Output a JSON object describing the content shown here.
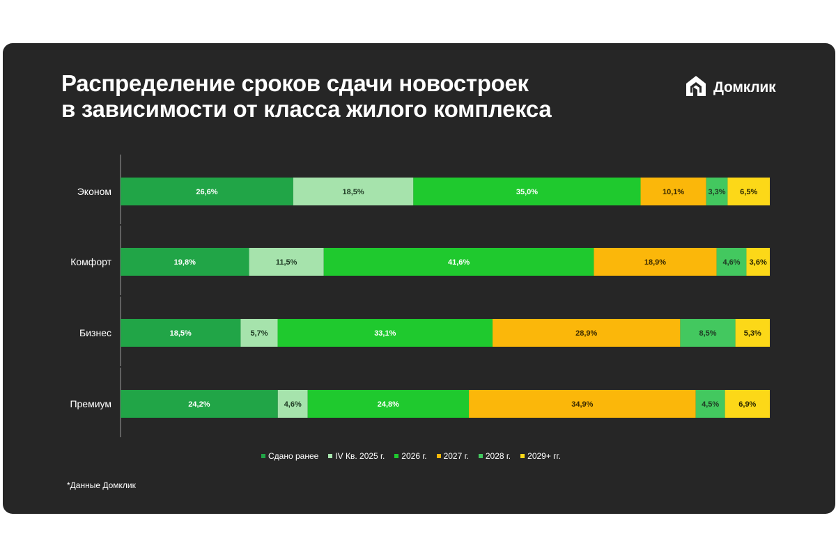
{
  "title_line1": "Распределение сроков сдачи новостроек",
  "title_line2": "в зависимости от класса жилого комплекса",
  "logo": {
    "text": "Домклик",
    "icon": "domclick-house-icon"
  },
  "footnote": "*Данные Домклик",
  "chart_data": {
    "type": "bar",
    "orientation": "horizontal",
    "stacked": true,
    "normalized_percent": true,
    "categories": [
      "Эконом",
      "Комфорт",
      "Бизнес",
      "Премиум"
    ],
    "series": [
      {
        "name": "Сдано ранее",
        "color": "#21a547",
        "values": [
          26.6,
          19.8,
          18.5,
          24.2
        ],
        "labels": [
          "26,6%",
          "19,8%",
          "18,5%",
          "24,2%"
        ]
      },
      {
        "name": "IV Кв. 2025 г.",
        "color": "#a6e3ac",
        "values": [
          18.5,
          11.5,
          5.7,
          4.6
        ],
        "labels": [
          "18,5%",
          "11,5%",
          "5,7%",
          "4,6%"
        ]
      },
      {
        "name": "2026 г.",
        "color": "#1fc92e",
        "values": [
          35.0,
          41.6,
          33.1,
          24.8
        ],
        "labels": [
          "35,0%",
          "41,6%",
          "33,1%",
          "24,8%"
        ]
      },
      {
        "name": "2027 г.",
        "color": "#fbb70a",
        "values": [
          10.1,
          18.9,
          28.9,
          34.9
        ],
        "labels": [
          "10,1%",
          "18,9%",
          "28,9%",
          "34,9%"
        ]
      },
      {
        "name": "2028 г.",
        "color": "#43c85f",
        "values": [
          3.3,
          4.6,
          8.5,
          4.5
        ],
        "labels": [
          "3,3%",
          "4,6%",
          "8,5%",
          "4,5%"
        ]
      },
      {
        "name": "2029+ гг.",
        "color": "#fcd818",
        "values": [
          6.5,
          3.6,
          5.3,
          6.9
        ],
        "labels": [
          "6,5%",
          "3,6%",
          "5,3%",
          "6,9%"
        ]
      }
    ],
    "label_colors": [
      "#ffffff",
      "#1f3a24",
      "#ffffff",
      "#3a2a00",
      "#1f3a24",
      "#2a2600"
    ],
    "legend_position": "bottom",
    "grid": false
  }
}
